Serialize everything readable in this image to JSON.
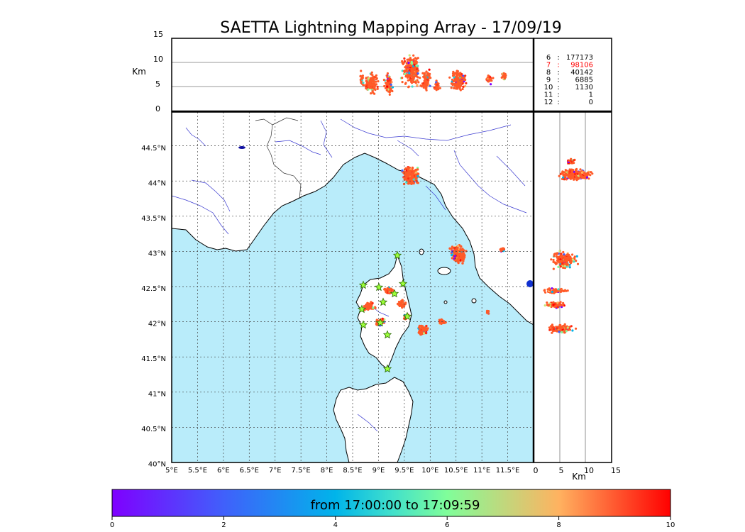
{
  "title": "SAETTA Lightning Mapping Array - 17/09/19",
  "alt_panel": {
    "unit_label": "Km",
    "ticks": [
      "15",
      "10",
      "5",
      "0"
    ]
  },
  "lat_ticks": [
    "44.5°N",
    "44°N",
    "43.5°N",
    "43°N",
    "42.5°N",
    "42°N",
    "41.5°N",
    "41°N",
    "40.5°N",
    "40°N"
  ],
  "lon_ticks": [
    "5°E",
    "5.5°E",
    "6°E",
    "6.5°E",
    "7°E",
    "7.5°E",
    "8°E",
    "8.5°E",
    "9°E",
    "9.5°E",
    "10°E",
    "10.5°E",
    "11°E",
    "11.5°E"
  ],
  "side_panel": {
    "unit_label": "Km",
    "ticks": [
      "0",
      "5",
      "10",
      "15"
    ]
  },
  "station_counts": [
    {
      "stations": "6",
      "count": "177173",
      "highlight": false
    },
    {
      "stations": "7",
      "count": "98106",
      "highlight": true
    },
    {
      "stations": "8",
      "count": "40142",
      "highlight": false
    },
    {
      "stations": "9",
      "count": "6885",
      "highlight": false
    },
    {
      "stations": "10",
      "count": "1130",
      "highlight": false
    },
    {
      "stations": "11",
      "count": "1",
      "highlight": false
    },
    {
      "stations": "12",
      "count": "0",
      "highlight": false
    }
  ],
  "colorbar": {
    "label": "from 17:00:00 to 17:09:59",
    "ticks": [
      "0",
      "2",
      "4",
      "6",
      "8",
      "10"
    ],
    "range": [
      0,
      10
    ]
  },
  "colors": {
    "sea": "#b9ecfa",
    "rivers": "#3a3ad0",
    "highlight_count": "#ff0000",
    "dominant_event": "#ff5a28"
  },
  "map_extent": {
    "lon": [
      5,
      12
    ],
    "lat": [
      40,
      45
    ],
    "alt_km": [
      0,
      15
    ]
  }
}
